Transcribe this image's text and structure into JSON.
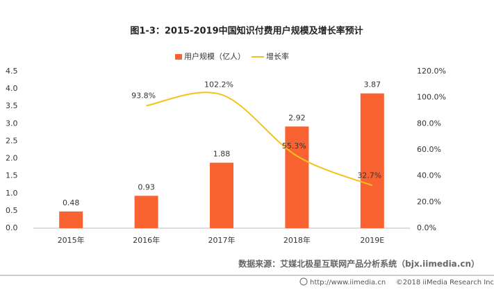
{
  "chart_data": {
    "type": "bar_line",
    "title": "图1-3：2015-2019中国知识付费用户规模及增长率预计",
    "categories": [
      "2015年",
      "2016年",
      "2017年",
      "2018年",
      "2019E"
    ],
    "series": [
      {
        "name": "用户规模（亿人）",
        "type": "bar",
        "color": "#f96332",
        "values": [
          0.48,
          0.93,
          1.88,
          2.92,
          3.87
        ]
      },
      {
        "name": "增长率",
        "type": "line",
        "axis": "y2",
        "color": "#f5c21b",
        "values": [
          null,
          93.8,
          102.2,
          55.3,
          32.7
        ],
        "value_labels": [
          null,
          "93.8%",
          "102.2%",
          "55.3%",
          "32.7%"
        ]
      }
    ],
    "ylim": [
      0,
      4.5
    ],
    "yticks": [
      {
        "value": 0,
        "label": "0.0"
      },
      0.5,
      {
        "value": 1,
        "label": "1.0"
      },
      1.5,
      {
        "value": 2,
        "label": "2.0"
      },
      2.5,
      {
        "value": 3,
        "label": "3.0"
      },
      3.5,
      {
        "value": 4,
        "label": "4.0"
      },
      4.5
    ],
    "y2lim": [
      0,
      120
    ],
    "y2ticks": [
      {
        "value": 0,
        "label": "0.0%"
      },
      {
        "value": 20,
        "label": "20.0%"
      },
      {
        "value": 40,
        "label": "40.0%"
      },
      {
        "value": 60,
        "label": "60.0%"
      },
      {
        "value": 80,
        "label": "80.0%"
      },
      {
        "value": 100,
        "label": "100.0%"
      },
      {
        "value": 120,
        "label": "120.0%"
      }
    ],
    "legend": "top",
    "source": "数据来源：艾媒北极星互联网产品分析系统（bjx.iimedia.cn）",
    "footer_url": "http://www.iimedia.cn",
    "footer_copyright": "©2018  iiMedia Research  Inc"
  }
}
